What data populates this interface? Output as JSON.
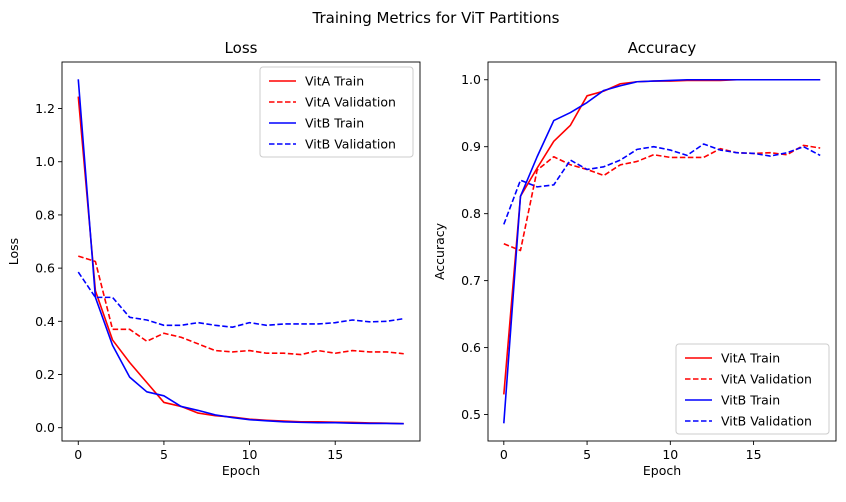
{
  "figure": {
    "suptitle": "Training Metrics for ViT Partitions"
  },
  "chart_data": [
    {
      "type": "line",
      "title": "Loss",
      "xlabel": "Epoch",
      "ylabel": "Loss",
      "xlim": [
        -0.95,
        19.95
      ],
      "ylim": [
        -0.05,
        1.375
      ],
      "xticks": [
        0,
        5,
        10,
        15
      ],
      "yticks": [
        0.0,
        0.2,
        0.4,
        0.6,
        0.8,
        1.0,
        1.2
      ],
      "tick_decimals": 1,
      "legend_position": "upper right",
      "grid": false,
      "x": [
        0,
        1,
        2,
        3,
        4,
        5,
        6,
        7,
        8,
        9,
        10,
        11,
        12,
        13,
        14,
        15,
        16,
        17,
        18,
        19
      ],
      "series": [
        {
          "name": "VitA Train",
          "color": "#ff0000",
          "style": "solid",
          "values": [
            1.245,
            0.515,
            0.33,
            0.245,
            0.17,
            0.095,
            0.08,
            0.055,
            0.045,
            0.04,
            0.032,
            0.028,
            0.025,
            0.022,
            0.022,
            0.021,
            0.02,
            0.018,
            0.017,
            0.015
          ]
        },
        {
          "name": "VitA Validation",
          "color": "#ff0000",
          "style": "dashed",
          "values": [
            0.645,
            0.625,
            0.37,
            0.37,
            0.325,
            0.355,
            0.34,
            0.315,
            0.29,
            0.285,
            0.29,
            0.28,
            0.28,
            0.275,
            0.29,
            0.28,
            0.29,
            0.285,
            0.285,
            0.278
          ]
        },
        {
          "name": "VitB Train",
          "color": "#0000ff",
          "style": "solid",
          "values": [
            1.31,
            0.49,
            0.31,
            0.19,
            0.135,
            0.12,
            0.08,
            0.065,
            0.048,
            0.038,
            0.03,
            0.026,
            0.022,
            0.02,
            0.019,
            0.019,
            0.017,
            0.016,
            0.016,
            0.015
          ]
        },
        {
          "name": "VitB Validation",
          "color": "#0000ff",
          "style": "dashed",
          "values": [
            0.585,
            0.49,
            0.49,
            0.415,
            0.405,
            0.385,
            0.385,
            0.395,
            0.385,
            0.378,
            0.395,
            0.385,
            0.39,
            0.39,
            0.39,
            0.395,
            0.405,
            0.398,
            0.4,
            0.41
          ]
        }
      ]
    },
    {
      "type": "line",
      "title": "Accuracy",
      "xlabel": "Epoch",
      "ylabel": "Accuracy",
      "xlim": [
        -0.95,
        19.95
      ],
      "ylim": [
        0.4605,
        1.0265
      ],
      "xticks": [
        0,
        5,
        10,
        15
      ],
      "yticks": [
        0.5,
        0.6,
        0.7,
        0.8,
        0.9,
        1.0
      ],
      "tick_decimals": 1,
      "legend_position": "lower right",
      "grid": false,
      "x": [
        0,
        1,
        2,
        3,
        4,
        5,
        6,
        7,
        8,
        9,
        10,
        11,
        12,
        13,
        14,
        15,
        16,
        17,
        18,
        19
      ],
      "series": [
        {
          "name": "VitA Train",
          "color": "#ff0000",
          "style": "solid",
          "values": [
            0.53,
            0.826,
            0.868,
            0.908,
            0.932,
            0.976,
            0.983,
            0.994,
            0.997,
            0.998,
            0.998,
            0.999,
            0.999,
            0.999,
            1.0,
            1.0,
            1.0,
            1.0,
            1.0,
            1.0
          ]
        },
        {
          "name": "VitA Validation",
          "color": "#ff0000",
          "style": "dashed",
          "values": [
            0.755,
            0.745,
            0.865,
            0.885,
            0.873,
            0.866,
            0.857,
            0.873,
            0.878,
            0.888,
            0.884,
            0.884,
            0.884,
            0.897,
            0.891,
            0.89,
            0.891,
            0.888,
            0.902,
            0.898
          ]
        },
        {
          "name": "VitB Train",
          "color": "#0000ff",
          "style": "solid",
          "values": [
            0.487,
            0.826,
            0.885,
            0.939,
            0.951,
            0.966,
            0.984,
            0.991,
            0.997,
            0.998,
            0.999,
            1.0,
            1.0,
            1.0,
            1.0,
            1.0,
            1.0,
            1.0,
            1.0,
            1.0
          ]
        },
        {
          "name": "VitB Validation",
          "color": "#0000ff",
          "style": "dashed",
          "values": [
            0.784,
            0.85,
            0.84,
            0.843,
            0.88,
            0.866,
            0.87,
            0.88,
            0.896,
            0.9,
            0.895,
            0.887,
            0.904,
            0.895,
            0.891,
            0.89,
            0.886,
            0.891,
            0.9,
            0.887
          ]
        }
      ]
    }
  ]
}
